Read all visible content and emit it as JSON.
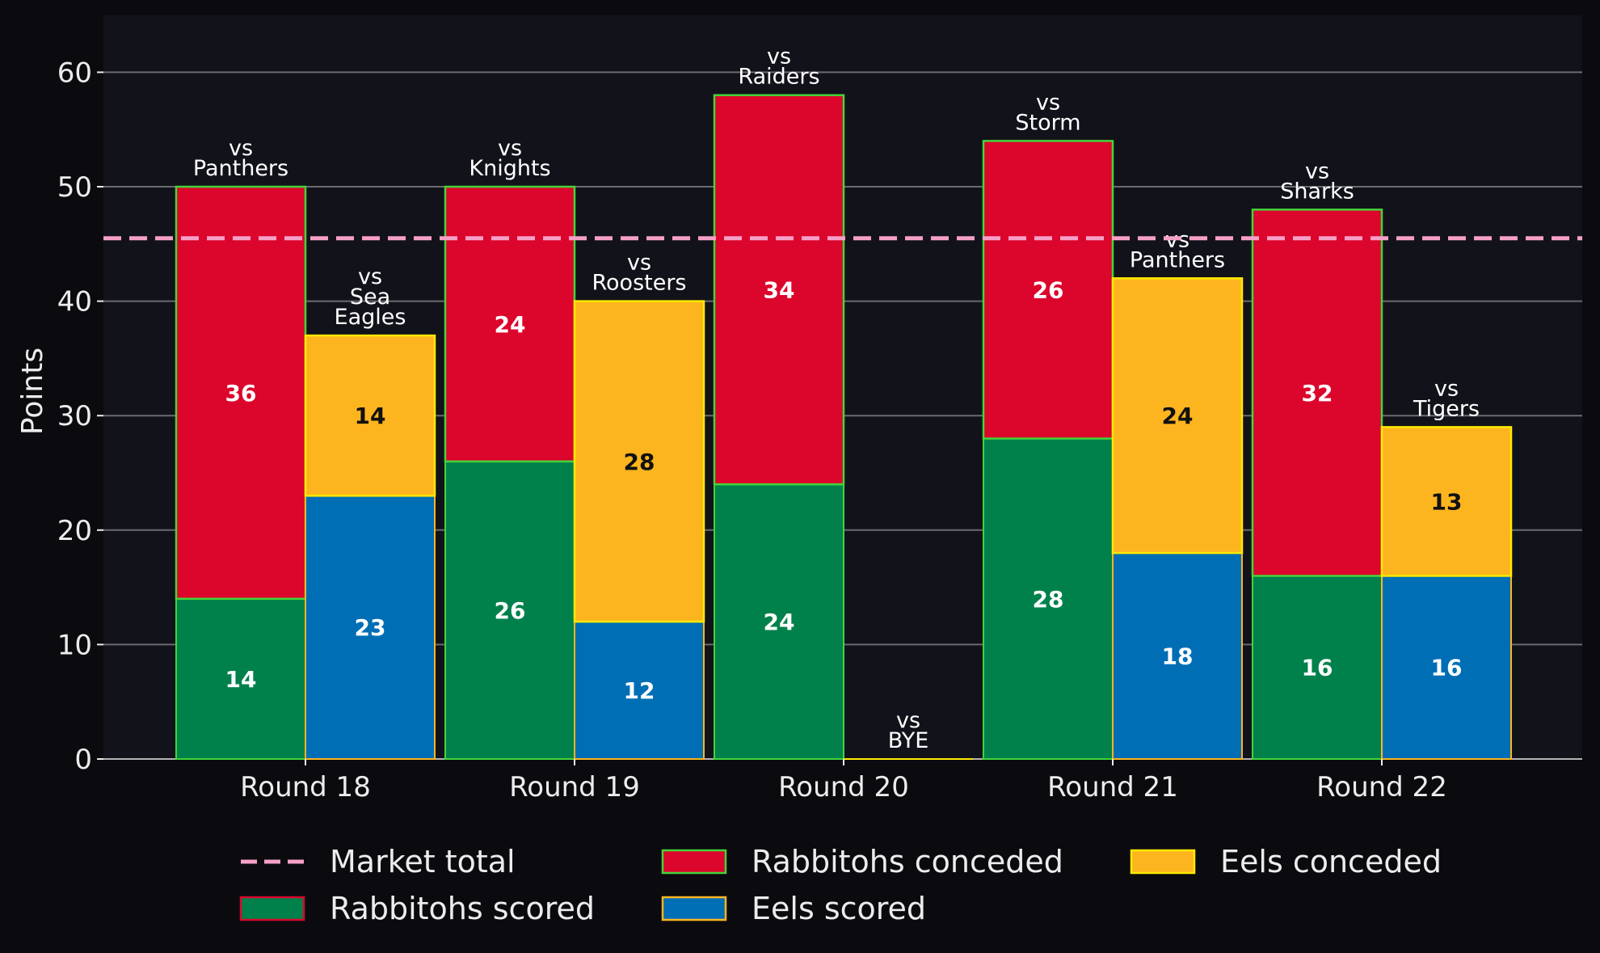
{
  "chart_data": {
    "type": "bar",
    "ylabel": "Points",
    "ylim": [
      0,
      65
    ],
    "yticks": [
      "0",
      "10",
      "20",
      "30",
      "40",
      "50",
      "60"
    ],
    "categories": [
      "Round 18",
      "Round 19",
      "Round 20",
      "Round 21",
      "Round 22"
    ],
    "grid": true,
    "market_total": 45.5,
    "rabbitohs": {
      "opponents": [
        [
          "vs",
          "Panthers"
        ],
        [
          "vs",
          "Knights"
        ],
        [
          "vs",
          "Raiders"
        ],
        [
          "vs",
          "Storm"
        ],
        [
          "vs",
          "Sharks"
        ]
      ],
      "scored": [
        14,
        26,
        24,
        28,
        16
      ],
      "conceded": [
        36,
        24,
        34,
        26,
        32
      ]
    },
    "eels": {
      "opponents": [
        [
          "vs",
          "Sea",
          "Eagles"
        ],
        [
          "vs",
          "Roosters"
        ],
        [
          "vs",
          "BYE"
        ],
        [
          "vs",
          "Panthers"
        ],
        [
          "vs",
          "Tigers"
        ]
      ],
      "scored": [
        23,
        12,
        0,
        18,
        16
      ],
      "conceded": [
        14,
        28,
        0,
        24,
        13
      ]
    },
    "colors": {
      "background": "#12131a",
      "page": "#0b0b0f",
      "rabbitohs_scored": "#00814b",
      "rabbitohs_conceded": "#dc052c",
      "rabbitohs_edge": "#44d438",
      "eels_scored": "#006eb5",
      "eels_conceded": "#fdb51f",
      "eels_edge": "#ffea00",
      "market_total": "#f6a0c8",
      "grid": "#6a6a70"
    },
    "legend": {
      "placement": "bottom",
      "items": [
        {
          "label": "Market total",
          "kind": "dash",
          "color": "#f6a0c8"
        },
        {
          "label": "Rabbitohs scored",
          "kind": "box",
          "color": "#00814b",
          "edge": "#dc052c"
        },
        {
          "label": "Rabbitohs conceded",
          "kind": "box",
          "color": "#dc052c",
          "edge": "#44d438"
        },
        {
          "label": "Eels scored",
          "kind": "box",
          "color": "#006eb5",
          "edge": "#fdb51f"
        },
        {
          "label": "Eels conceded",
          "kind": "box",
          "color": "#fdb51f",
          "edge": "#ffea00"
        }
      ]
    }
  }
}
